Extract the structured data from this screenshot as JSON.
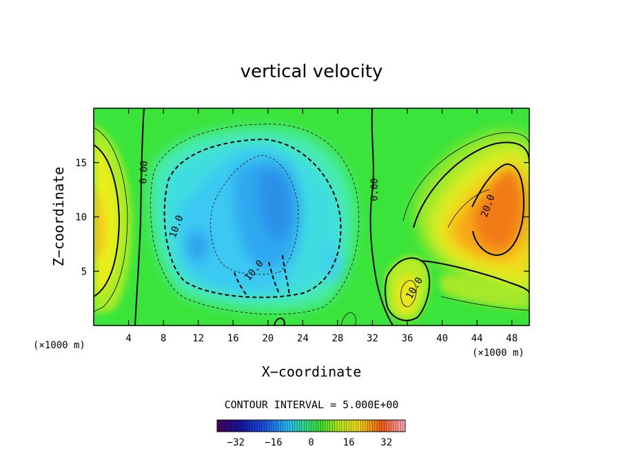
{
  "chart_data": {
    "type": "heatmap",
    "title": "vertical velocity",
    "xlabel": "X−coordinate",
    "ylabel": "Z−coordinate",
    "x_unit": "(×1000 m)",
    "x_unit_right": "(×1000 m)",
    "xlim": [
      0,
      50
    ],
    "ylim": [
      0,
      20
    ],
    "x_ticks": [
      4,
      8,
      12,
      16,
      20,
      24,
      28,
      32,
      36,
      40,
      44,
      48
    ],
    "y_ticks": [
      5,
      10,
      15
    ],
    "contour_interval_text": "CONTOUR INTERVAL = 5.000E+00",
    "contour_labels": [
      "0.00",
      "0.00",
      "10.0",
      "10.0",
      "10.0",
      "20.0"
    ],
    "colorbar": {
      "ticks": [
        -32,
        -16,
        0,
        16,
        32
      ],
      "tick_labels": [
        "−32",
        "−16",
        "0",
        "16",
        "32"
      ],
      "range": [
        -40,
        40
      ]
    },
    "features": [
      {
        "x": 1,
        "z": 10,
        "value": 15
      },
      {
        "x": 20,
        "z": 10,
        "value": -17
      },
      {
        "x": 46,
        "z": 11,
        "value": 27
      },
      {
        "x": 36,
        "z": 3,
        "value": 10
      }
    ],
    "colors": {
      "neg_strong": "#1a7fe6",
      "neg": "#3ad0f0",
      "zero": "#39e639",
      "pos": "#f0f020",
      "pos_strong": "#f06a10"
    }
  }
}
